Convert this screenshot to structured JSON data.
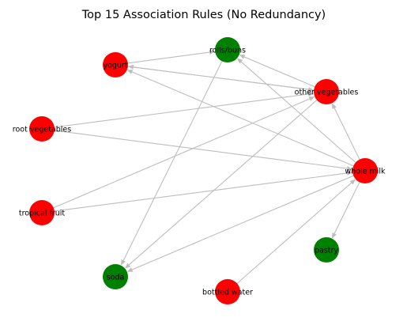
{
  "title": "Top 15 Association Rules (No Redundancy)",
  "colors": {
    "antecedent": "#ff0000",
    "consequent": "#008000",
    "edge": "#bdbdbd"
  },
  "nodes": [
    {
      "id": "rolls/buns",
      "label": "rolls/buns",
      "color": "green"
    },
    {
      "id": "yogurt",
      "label": "yogurt",
      "color": "red"
    },
    {
      "id": "other vegetables",
      "label": "other vegetables",
      "color": "red"
    },
    {
      "id": "root vegetables",
      "label": "root vegetables",
      "color": "red"
    },
    {
      "id": "whole milk",
      "label": "whole milk",
      "color": "red"
    },
    {
      "id": "tropical fruit",
      "label": "tropical fruit",
      "color": "red"
    },
    {
      "id": "pastry",
      "label": "pastry",
      "color": "green"
    },
    {
      "id": "soda",
      "label": "soda",
      "color": "green"
    },
    {
      "id": "bottled water",
      "label": "bottled water",
      "color": "red"
    }
  ],
  "edges": [
    {
      "from": "yogurt",
      "to": "rolls/buns"
    },
    {
      "from": "yogurt",
      "to": "other vegetables"
    },
    {
      "from": "other vegetables",
      "to": "yogurt"
    },
    {
      "from": "other vegetables",
      "to": "rolls/buns"
    },
    {
      "from": "root vegetables",
      "to": "other vegetables"
    },
    {
      "from": "root vegetables",
      "to": "whole milk"
    },
    {
      "from": "whole milk",
      "to": "yogurt"
    },
    {
      "from": "whole milk",
      "to": "rolls/buns"
    },
    {
      "from": "whole milk",
      "to": "other vegetables"
    },
    {
      "from": "whole milk",
      "to": "pastry"
    },
    {
      "from": "whole milk",
      "to": "soda"
    },
    {
      "from": "tropical fruit",
      "to": "other vegetables"
    },
    {
      "from": "tropical fruit",
      "to": "whole milk"
    },
    {
      "from": "rolls/buns",
      "to": "soda"
    },
    {
      "from": "other vegetables",
      "to": "soda"
    },
    {
      "from": "bottled water",
      "to": "whole milk"
    }
  ]
}
